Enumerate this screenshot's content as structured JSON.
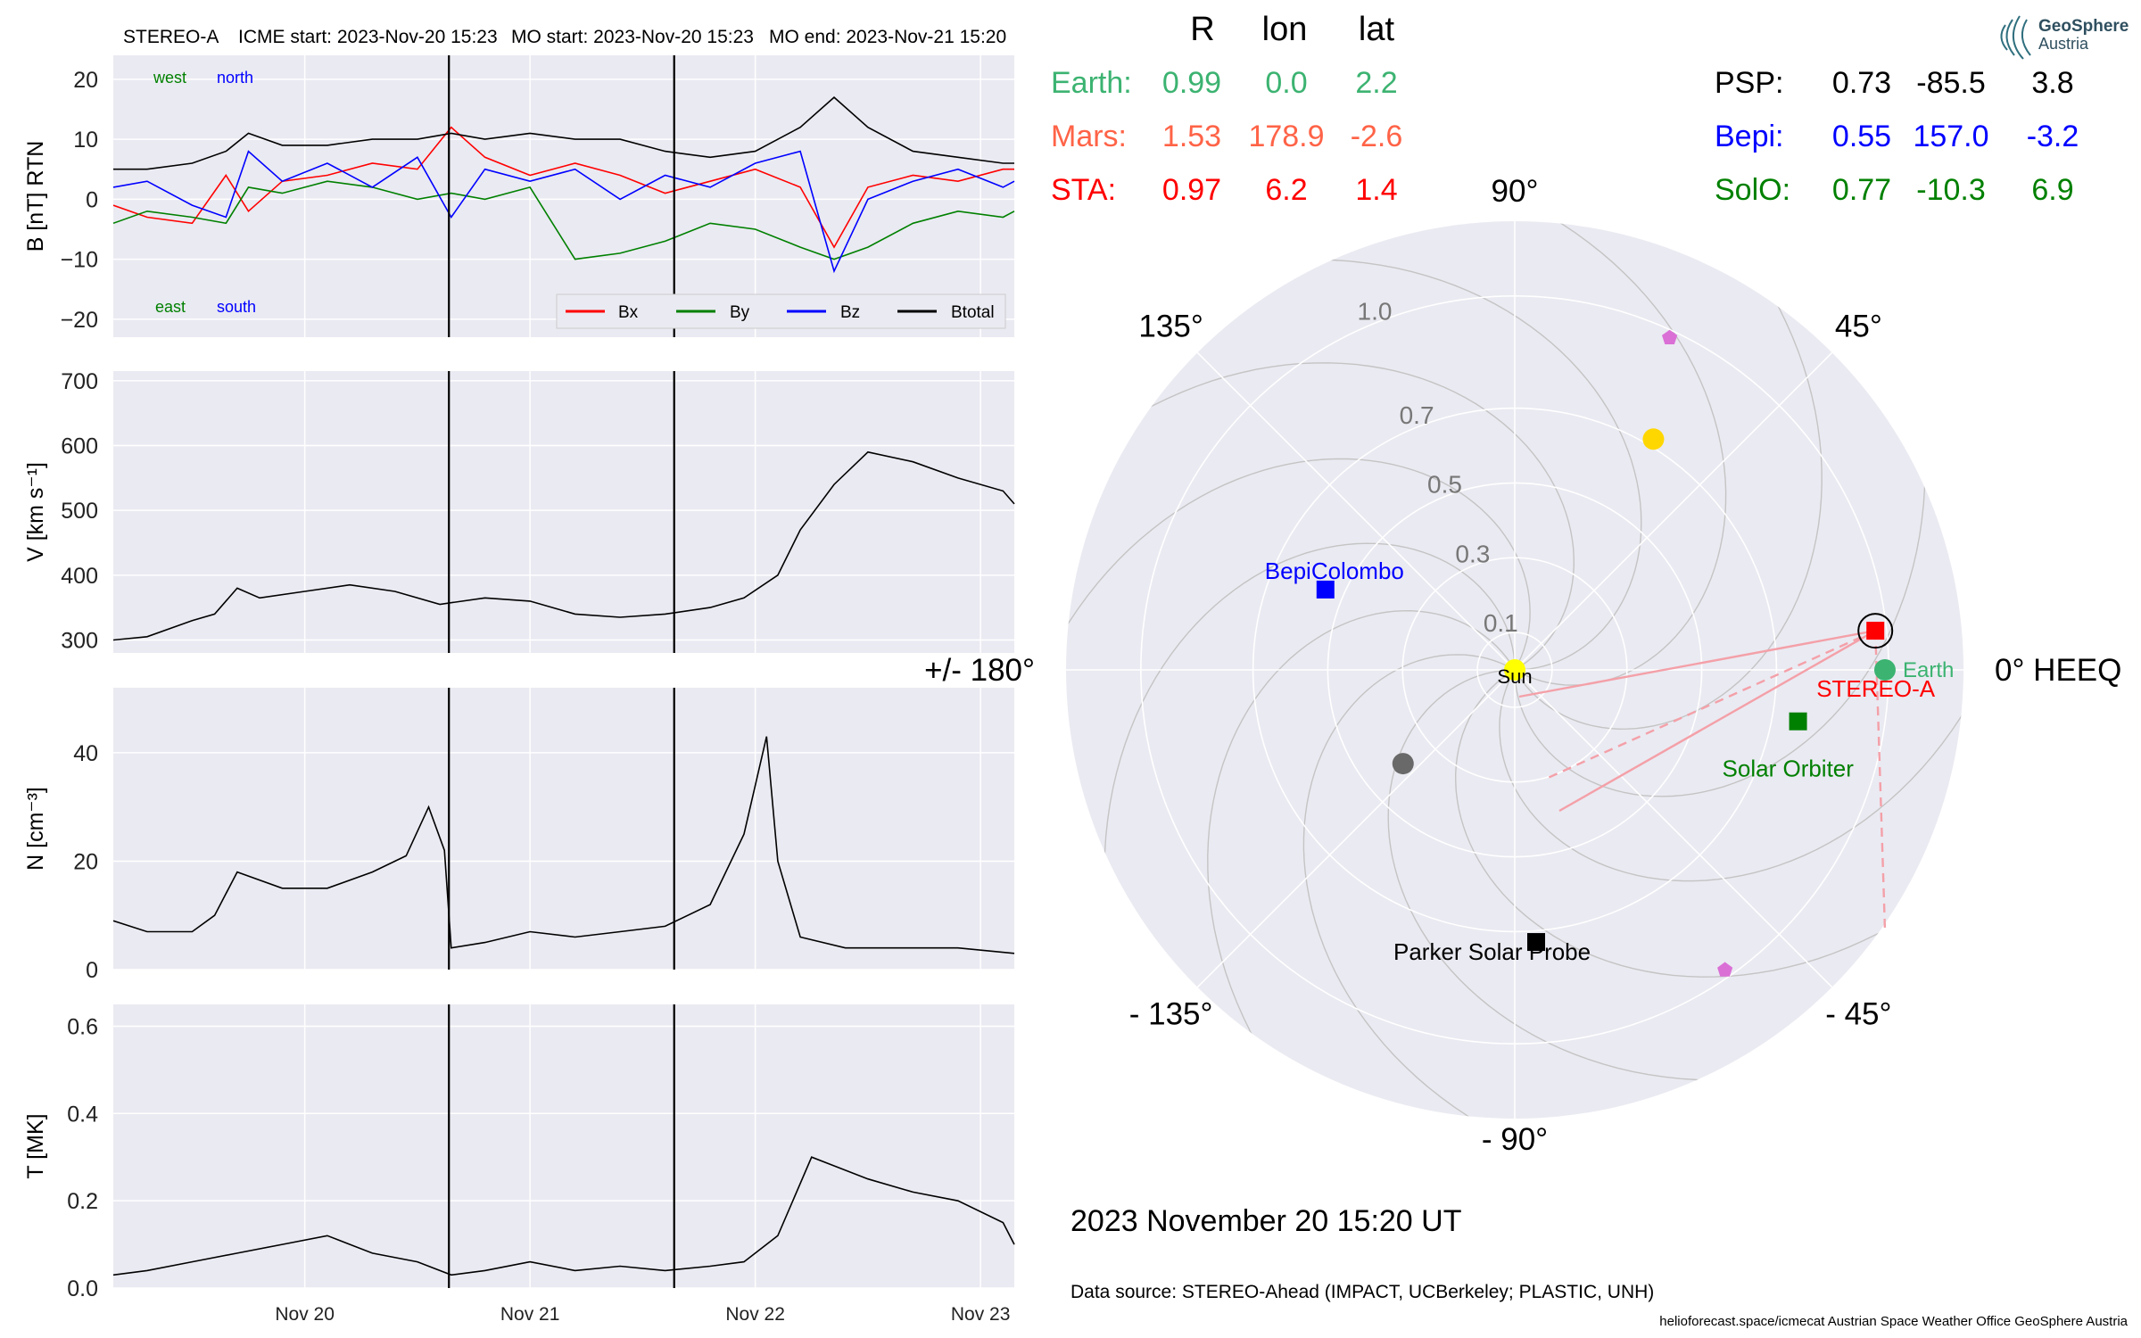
{
  "header": {
    "spacecraft": "STEREO-A",
    "icme_start": "ICME start: 2023-Nov-20 15:23",
    "mo_start": "MO start: 2023-Nov-20 15:23",
    "mo_end": "MO end: 2023-Nov-21 15:20"
  },
  "logo": {
    "line1": "GeoSphere",
    "line2": "Austria"
  },
  "positions_table": {
    "columns": [
      "R",
      "lon",
      "lat"
    ],
    "left": [
      {
        "name": "Earth:",
        "R": "0.99",
        "lon": "0.0",
        "lat": "2.2",
        "color": "#3cb371"
      },
      {
        "name": "Mars:",
        "R": "1.53",
        "lon": "178.9",
        "lat": "-2.6",
        "color": "#ff6347"
      },
      {
        "name": "STA:",
        "R": "0.97",
        "lon": "6.2",
        "lat": "1.4",
        "color": "#ff0000"
      }
    ],
    "right": [
      {
        "name": "PSP:",
        "R": "0.73",
        "lon": "-85.5",
        "lat": "3.8",
        "color": "#000000"
      },
      {
        "name": "Bepi:",
        "R": "0.55",
        "lon": "157.0",
        "lat": "-3.2",
        "color": "#0000ff"
      },
      {
        "name": "SolO:",
        "R": "0.77",
        "lon": "-10.3",
        "lat": "6.9",
        "color": "#008000"
      }
    ]
  },
  "polar": {
    "angle_labels": [
      {
        "text": "90°",
        "angle": 90
      },
      {
        "text": "45°",
        "angle": 45
      },
      {
        "text": "0° HEEQ",
        "angle": 0
      },
      {
        "text": "- 45°",
        "angle": -45
      },
      {
        "text": "- 90°",
        "angle": -90
      },
      {
        "text": "- 135°",
        "angle": -135
      },
      {
        "text": "+/- 180°",
        "angle": 180
      },
      {
        "text": "135°",
        "angle": 135
      }
    ],
    "radial_labels": [
      "0.1",
      "0.3",
      "0.5",
      "0.7",
      "1.0"
    ],
    "radial_values": [
      0.1,
      0.3,
      0.5,
      0.7,
      1.0
    ],
    "rmax": 1.2,
    "bodies": [
      {
        "name": "Sun",
        "r": 0.0,
        "lon": 0,
        "color": "#ffff00",
        "shape": "circle"
      },
      {
        "name": "Earth",
        "r": 0.99,
        "lon": 0.0,
        "color": "#3cb371",
        "shape": "circle"
      },
      {
        "name": "STEREO-A",
        "r": 0.97,
        "lon": 6.2,
        "color": "#ff0000",
        "shape": "square"
      },
      {
        "name": "Solar Orbiter",
        "r": 0.77,
        "lon": -10.3,
        "color": "#008000",
        "shape": "square"
      },
      {
        "name": "BepiColombo",
        "r": 0.55,
        "lon": 157.0,
        "color": "#0000ff",
        "shape": "square"
      },
      {
        "name": "Parker Solar Probe",
        "r": 0.73,
        "lon": -85.5,
        "color": "#000000",
        "shape": "square"
      },
      {
        "name": "",
        "r": 0.72,
        "lon": 59,
        "color": "#ffd700",
        "shape": "circle"
      },
      {
        "name": "",
        "r": 0.39,
        "lon": -140,
        "color": "#696969",
        "shape": "circle"
      },
      {
        "name": "",
        "r": 0.98,
        "lon": 65,
        "color": "#da70d6",
        "shape": "pentagon"
      },
      {
        "name": "",
        "r": 0.98,
        "lon": -55,
        "color": "#da70d6",
        "shape": "pentagon"
      }
    ]
  },
  "date_label": "2023 November 20  15:20 UT",
  "data_source": "Data source: STEREO-Ahead (IMPACT, UCBerkeley; PLASTIC, UNH)",
  "footer": "helioforecast.space/icmecat   Austrian Space Weather Office   GeoSphere Austria",
  "colors": {
    "bx": "#ff0000",
    "by": "#008000",
    "bz": "#0000ff",
    "btot": "#000000",
    "panel_bg": "#eaeaf2",
    "grid": "#ffffff"
  },
  "chart_data": [
    {
      "type": "line",
      "ylabel": "B [nT] RTN",
      "ylim": [
        -23,
        24
      ],
      "yticks": [
        20,
        10,
        0,
        -10,
        -20
      ],
      "ytick_labels": [
        "20",
        "10",
        "0",
        "−10",
        "−20"
      ],
      "x": [
        19.15,
        19.3,
        19.5,
        19.65,
        19.75,
        19.9,
        20.1,
        20.3,
        20.5,
        20.65,
        20.8,
        21.0,
        21.2,
        21.4,
        21.6,
        21.8,
        22.0,
        22.2,
        22.35,
        22.5,
        22.7,
        22.9,
        23.1,
        23.15
      ],
      "series": [
        {
          "name": "Bx",
          "values": [
            -1,
            -3,
            -4,
            4,
            -2,
            3,
            4,
            6,
            5,
            12,
            7,
            4,
            6,
            4,
            1,
            3,
            5,
            2,
            -8,
            2,
            4,
            3,
            5,
            5
          ]
        },
        {
          "name": "By",
          "values": [
            -4,
            -2,
            -3,
            -4,
            2,
            1,
            3,
            2,
            0,
            1,
            0,
            2,
            -10,
            -9,
            -7,
            -4,
            -5,
            -8,
            -10,
            -8,
            -4,
            -2,
            -3,
            -2
          ]
        },
        {
          "name": "Bz",
          "values": [
            2,
            3,
            -1,
            -3,
            8,
            3,
            6,
            2,
            7,
            -3,
            5,
            3,
            5,
            0,
            4,
            2,
            6,
            8,
            -12,
            0,
            3,
            5,
            2,
            3
          ]
        },
        {
          "name": "Btotal",
          "values": [
            5,
            5,
            6,
            8,
            11,
            9,
            9,
            10,
            10,
            11,
            10,
            11,
            10,
            10,
            8,
            7,
            8,
            12,
            17,
            12,
            8,
            7,
            6,
            6
          ]
        }
      ],
      "annotations": [
        "west",
        "north",
        "east",
        "south"
      ],
      "vlines": [
        20.64,
        21.64
      ],
      "legend": "bottom-right"
    },
    {
      "type": "line",
      "ylabel": "V [km s⁻¹]",
      "ylim": [
        280,
        715
      ],
      "yticks": [
        700,
        600,
        500,
        400,
        300
      ],
      "ytick_labels": [
        "700",
        "600",
        "500",
        "400",
        "300"
      ],
      "x": [
        19.15,
        19.3,
        19.5,
        19.6,
        19.7,
        19.8,
        20.0,
        20.2,
        20.4,
        20.6,
        20.8,
        21.0,
        21.2,
        21.4,
        21.6,
        21.8,
        21.95,
        22.1,
        22.2,
        22.35,
        22.5,
        22.7,
        22.9,
        23.1,
        23.15
      ],
      "series": [
        {
          "name": "",
          "values": [
            300,
            305,
            330,
            340,
            380,
            365,
            375,
            385,
            375,
            355,
            365,
            360,
            340,
            335,
            340,
            350,
            365,
            400,
            470,
            540,
            590,
            575,
            550,
            530,
            510
          ]
        }
      ],
      "vlines": [
        20.64,
        21.64
      ]
    },
    {
      "type": "line",
      "ylabel": "N [cm⁻³]",
      "ylim": [
        0,
        52
      ],
      "yticks": [
        40,
        20,
        0
      ],
      "ytick_labels": [
        "40",
        "20",
        "0"
      ],
      "x": [
        19.15,
        19.3,
        19.5,
        19.6,
        19.7,
        19.9,
        20.1,
        20.3,
        20.45,
        20.55,
        20.62,
        20.65,
        20.8,
        21.0,
        21.2,
        21.4,
        21.6,
        21.8,
        21.95,
        22.05,
        22.1,
        22.2,
        22.4,
        22.6,
        22.9,
        23.15
      ],
      "series": [
        {
          "name": "",
          "values": [
            9,
            7,
            7,
            10,
            18,
            15,
            15,
            18,
            21,
            30,
            22,
            4,
            5,
            7,
            6,
            7,
            8,
            12,
            25,
            43,
            20,
            6,
            4,
            4,
            4,
            3
          ]
        }
      ],
      "vlines": [
        20.64,
        21.64
      ]
    },
    {
      "type": "line",
      "ylabel": "T [MK]",
      "ylim": [
        0,
        0.65
      ],
      "yticks": [
        0.6,
        0.4,
        0.2,
        0.0
      ],
      "ytick_labels": [
        "0.6",
        "0.4",
        "0.2",
        "0.0"
      ],
      "xticks": [
        20,
        21,
        22,
        23
      ],
      "xtick_labels": [
        "Nov 20",
        "Nov 21",
        "Nov 22",
        "Nov 23"
      ],
      "x": [
        19.15,
        19.3,
        19.5,
        19.7,
        19.9,
        20.1,
        20.3,
        20.5,
        20.65,
        20.8,
        21.0,
        21.2,
        21.4,
        21.6,
        21.8,
        21.95,
        22.1,
        22.25,
        22.35,
        22.5,
        22.7,
        22.9,
        23.1,
        23.15
      ],
      "series": [
        {
          "name": "",
          "values": [
            0.03,
            0.04,
            0.06,
            0.08,
            0.1,
            0.12,
            0.08,
            0.06,
            0.03,
            0.04,
            0.06,
            0.04,
            0.05,
            0.04,
            0.05,
            0.06,
            0.12,
            0.3,
            0.28,
            0.25,
            0.22,
            0.2,
            0.15,
            0.1
          ]
        }
      ],
      "vlines": [
        20.64,
        21.64
      ]
    }
  ]
}
